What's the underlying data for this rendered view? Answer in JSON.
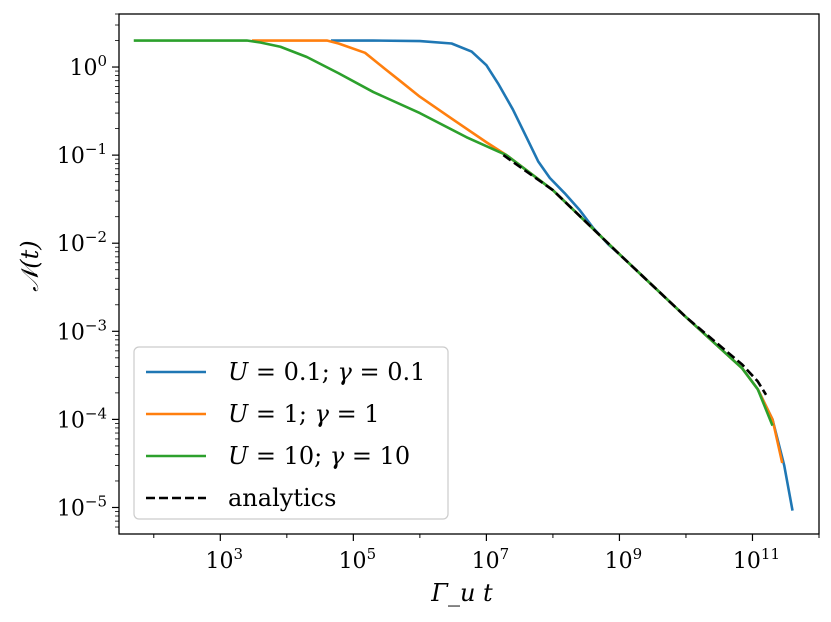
{
  "chart_data": {
    "type": "line",
    "title": "",
    "xlabel": "Γ_u t",
    "ylabel": "𝒩(t)",
    "xscale": "log",
    "yscale": "log",
    "xlim": [
      30,
      1000000000000.0
    ],
    "ylim": [
      5e-06,
      4.0
    ],
    "grid": false,
    "legend_position": "lower-left",
    "x_ticks": [
      {
        "base": "10",
        "exp": "3",
        "value": 1000
      },
      {
        "base": "10",
        "exp": "5",
        "value": 100000
      },
      {
        "base": "10",
        "exp": "7",
        "value": 10000000
      },
      {
        "base": "10",
        "exp": "9",
        "value": 1000000000
      },
      {
        "base": "10",
        "exp": "11",
        "value": 100000000000
      }
    ],
    "y_ticks": [
      {
        "base": "10",
        "exp": "0",
        "value": 1
      },
      {
        "base": "10",
        "exp": "−1",
        "value": 0.1
      },
      {
        "base": "10",
        "exp": "−2",
        "value": 0.01
      },
      {
        "base": "10",
        "exp": "−3",
        "value": 0.001
      },
      {
        "base": "10",
        "exp": "−4",
        "value": 0.0001
      },
      {
        "base": "10",
        "exp": "−5",
        "value": 1e-05
      }
    ],
    "series": [
      {
        "name": "U = 0.1; γ = 0.1",
        "legend_parts": {
          "a": "U",
          "b": " = 0.1; ",
          "c": "γ",
          "d": " = 0.1"
        },
        "color": "#1f77b4",
        "dash": "solid",
        "points": [
          [
            46000,
            2.0
          ],
          [
            200000,
            2.0
          ],
          [
            1000000,
            1.97
          ],
          [
            3000000,
            1.85
          ],
          [
            6000000,
            1.5
          ],
          [
            10000000,
            1.05
          ],
          [
            15000000,
            0.65
          ],
          [
            25000000,
            0.33
          ],
          [
            40000000,
            0.16
          ],
          [
            60000000,
            0.085
          ],
          [
            90000000,
            0.055
          ],
          [
            150000000,
            0.037
          ],
          [
            250000000,
            0.024
          ],
          [
            400000000,
            0.015
          ],
          [
            700000000,
            0.0095
          ],
          [
            1000000000,
            0.0075
          ],
          [
            10000000000,
            0.00145
          ],
          [
            70000000000,
            0.00038
          ],
          [
            120000000000,
            0.00022
          ],
          [
            200000000000,
            0.0001
          ],
          [
            300000000000,
            3e-05
          ],
          [
            400000000000,
            9.2e-06
          ]
        ]
      },
      {
        "name": "U = 1; γ = 1",
        "legend_parts": {
          "a": "U",
          "b": " = 1; ",
          "c": "γ",
          "d": " = 1"
        },
        "color": "#ff7f0e",
        "dash": "solid",
        "points": [
          [
            3000,
            2.0
          ],
          [
            40000,
            2.0
          ],
          [
            60000,
            1.85
          ],
          [
            150000,
            1.45
          ],
          [
            300000,
            0.95
          ],
          [
            500000,
            0.7
          ],
          [
            1000000,
            0.46
          ],
          [
            3000000,
            0.26
          ],
          [
            10000000,
            0.14
          ],
          [
            20000000,
            0.1
          ],
          [
            100000000,
            0.04
          ],
          [
            1000000000,
            0.0075
          ],
          [
            10000000000,
            0.00145
          ],
          [
            70000000000,
            0.00038
          ],
          [
            120000000000,
            0.00022
          ],
          [
            200000000000,
            0.0001
          ],
          [
            280000000000,
            3.2e-05
          ]
        ]
      },
      {
        "name": "U = 10; γ = 10",
        "legend_parts": {
          "a": "U",
          "b": " = 10; ",
          "c": "γ",
          "d": " = 10"
        },
        "color": "#2ca02c",
        "dash": "solid",
        "points": [
          [
            50,
            2.0
          ],
          [
            2500,
            2.0
          ],
          [
            4000,
            1.9
          ],
          [
            8000,
            1.7
          ],
          [
            20000,
            1.3
          ],
          [
            60000,
            0.85
          ],
          [
            200000,
            0.52
          ],
          [
            1000000,
            0.3
          ],
          [
            5000000,
            0.16
          ],
          [
            15000000,
            0.11
          ],
          [
            20000000,
            0.1
          ],
          [
            100000000,
            0.04
          ],
          [
            1000000000,
            0.0075
          ],
          [
            10000000000,
            0.00145
          ],
          [
            70000000000,
            0.00038
          ],
          [
            120000000000,
            0.00022
          ],
          [
            200000000000,
            8.5e-05
          ]
        ]
      },
      {
        "name": "analytics",
        "legend_parts": {
          "a": "",
          "b": "analytics",
          "c": "",
          "d": ""
        },
        "color": "#000000",
        "dash": "dashed",
        "points": [
          [
            18000000,
            0.1
          ],
          [
            100000000,
            0.04
          ],
          [
            1000000000,
            0.0075
          ],
          [
            10000000000,
            0.00145
          ],
          [
            70000000000,
            0.00042
          ],
          [
            120000000000,
            0.00027
          ],
          [
            160000000000,
            0.00019
          ]
        ]
      }
    ]
  }
}
